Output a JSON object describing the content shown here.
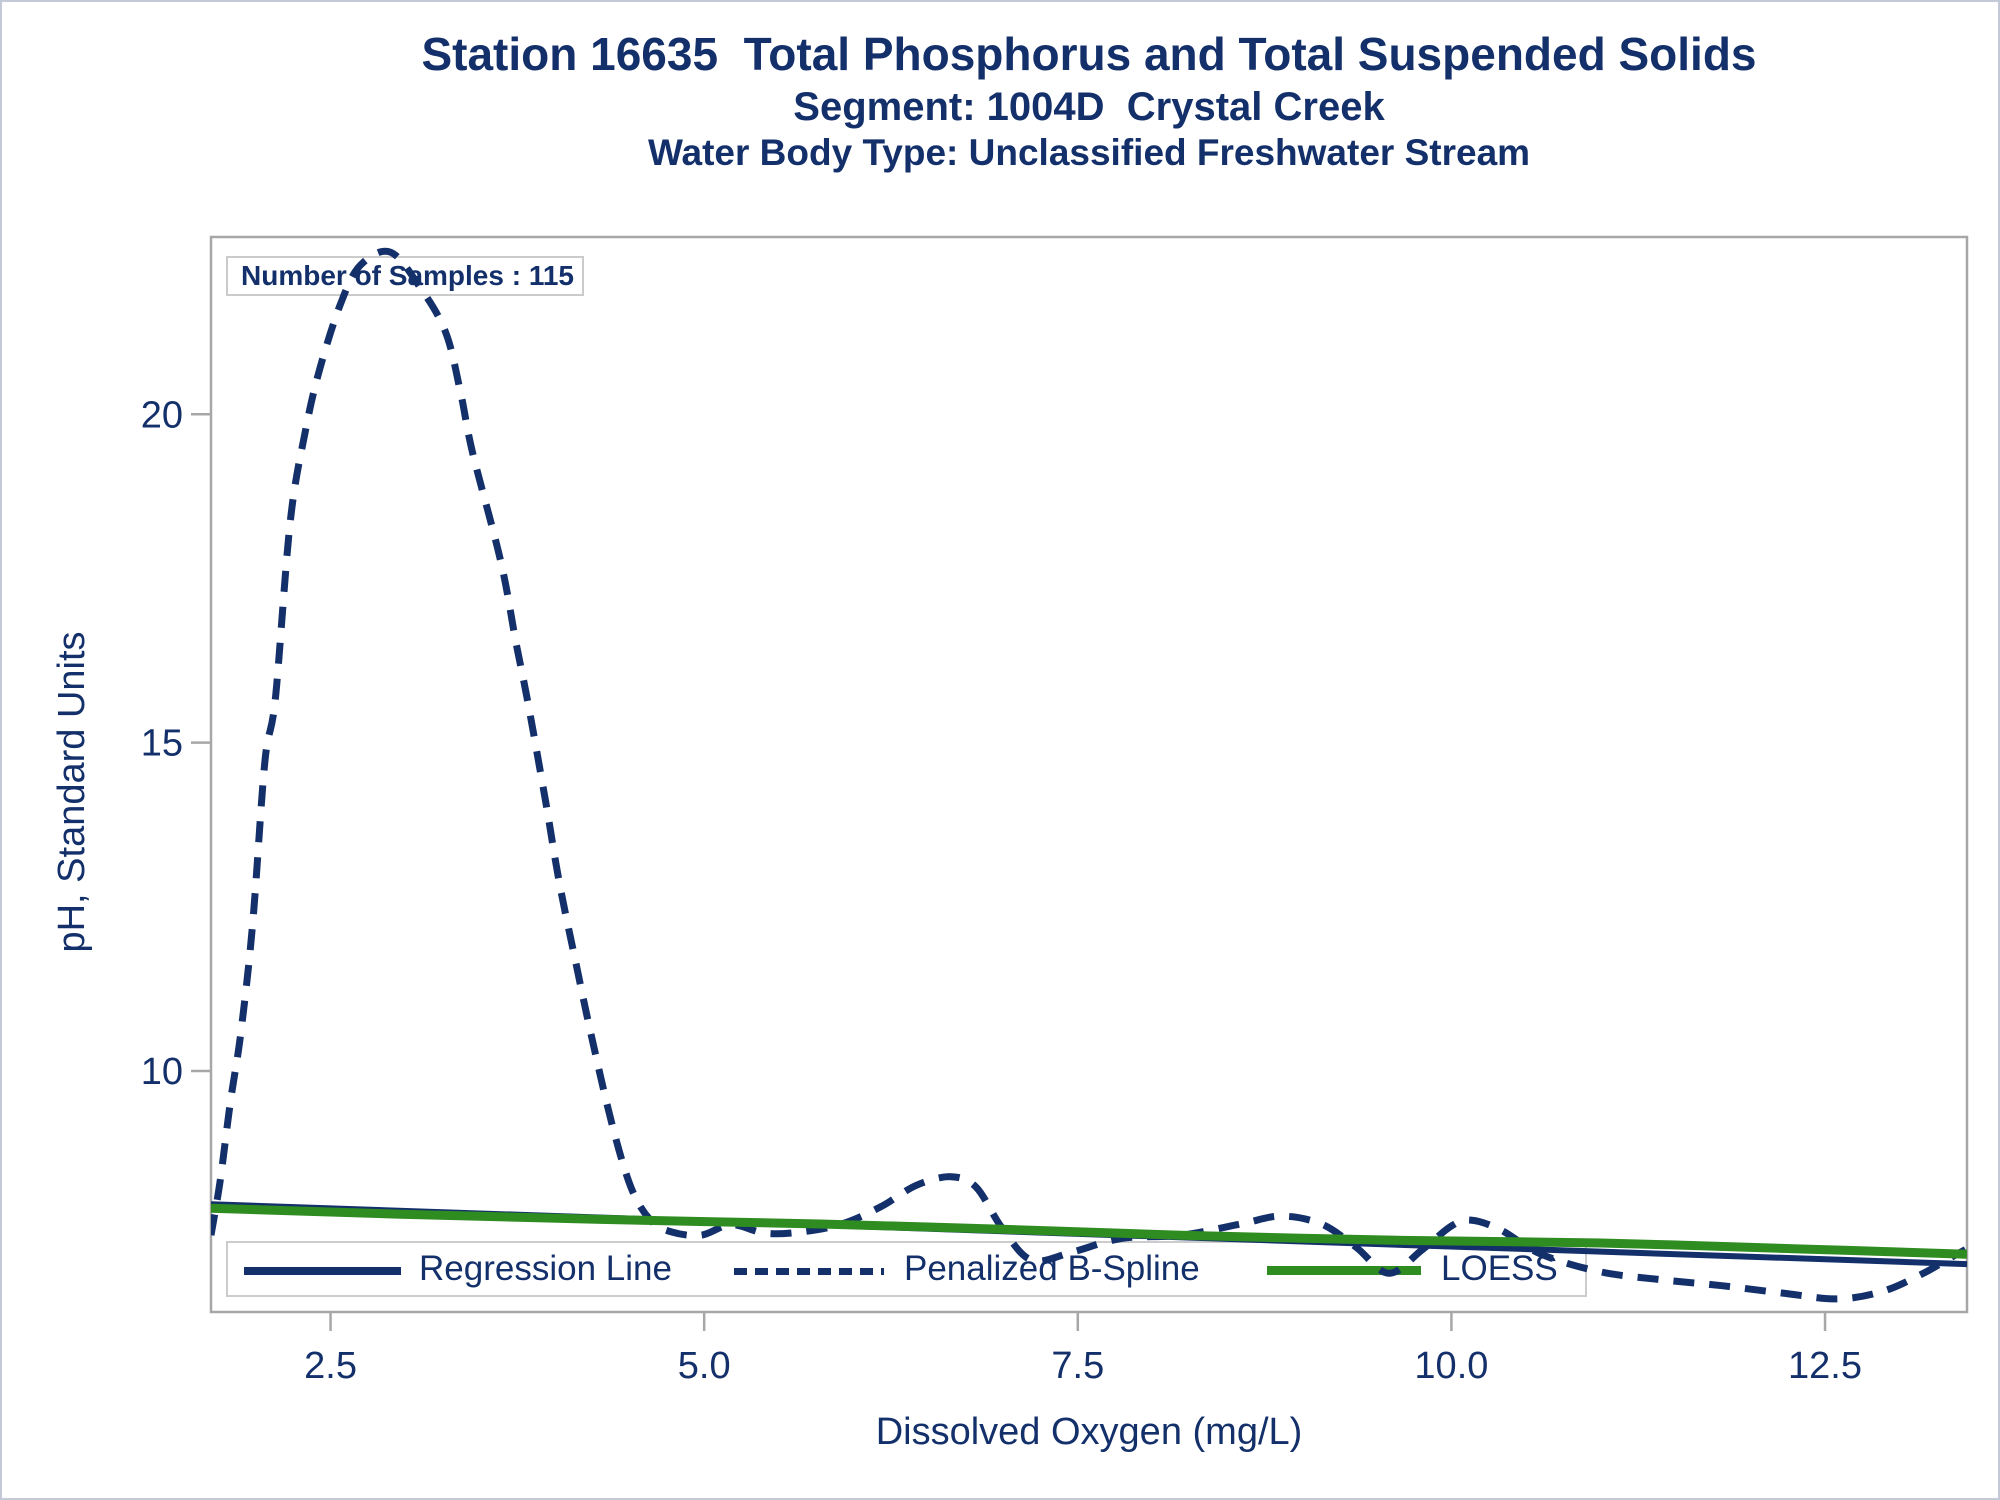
{
  "figure": {
    "titles": {
      "line1": "Station 16635  Total Phosphorus and Total Suspended Solids",
      "line2": "Segment: 1004D  Crystal Creek",
      "line3": "Water Body Type: Unclassified Freshwater Stream"
    },
    "inset_label": "Number of Samples : 115",
    "x_axis": {
      "label": "Dissolved Oxygen (mg/L)"
    },
    "y_axis": {
      "label": "pH, Standard Units"
    },
    "legend": [
      {
        "label": "Regression Line",
        "style": "solid",
        "color": "#14306b"
      },
      {
        "label": "Penalized B-Spline",
        "style": "dashed",
        "color": "#14306b"
      },
      {
        "label": "LOESS",
        "style": "solid",
        "color": "#2f8c20"
      }
    ]
  },
  "colors": {
    "navy": "#14306b",
    "green": "#2f8c20",
    "axis_gray": "#a7a7a7",
    "box_border": "#cbcbcb",
    "figure_border": "#c3c9d6"
  },
  "chart_data": {
    "type": "line",
    "title": "Station 16635  Total Phosphorus and Total Suspended Solids",
    "subtitle": "Segment: 1004D  Crystal Creek",
    "subtitle2": "Water Body Type: Unclassified Freshwater Stream",
    "xlabel": "Dissolved Oxygen (mg/L)",
    "ylabel": "pH, Standard Units",
    "annotation": "Number of Samples : 115",
    "grid": false,
    "legend_position": "bottom-inside",
    "xlim": [
      1.7,
      13.45
    ],
    "ylim": [
      6.33,
      22.7
    ],
    "x_ticks": [
      2.5,
      5.0,
      7.5,
      10.0,
      12.5
    ],
    "x_tick_labels": [
      "2.5",
      "5.0",
      "7.5",
      "10.0",
      "12.5"
    ],
    "y_ticks": [
      10,
      15,
      20
    ],
    "y_tick_labels": [
      "10",
      "15",
      "20"
    ],
    "series": [
      {
        "name": "Regression Line",
        "style": "solid",
        "color": "#14306b",
        "width": 6,
        "smooth": false,
        "points": [
          [
            1.7,
            7.97
          ],
          [
            13.45,
            7.06
          ]
        ]
      },
      {
        "name": "Penalized B-Spline",
        "style": "dashed",
        "color": "#14306b",
        "width": 7,
        "smooth": true,
        "points": [
          [
            1.7,
            7.5
          ],
          [
            1.76,
            8.31
          ],
          [
            1.83,
            9.53
          ],
          [
            1.9,
            10.59
          ],
          [
            1.98,
            12.27
          ],
          [
            2.06,
            14.7
          ],
          [
            2.13,
            15.66
          ],
          [
            2.23,
            18.36
          ],
          [
            2.33,
            19.73
          ],
          [
            2.43,
            20.71
          ],
          [
            2.57,
            21.7
          ],
          [
            2.7,
            22.27
          ],
          [
            2.9,
            22.47
          ],
          [
            3.1,
            21.93
          ],
          [
            3.27,
            21.25
          ],
          [
            3.37,
            20.33
          ],
          [
            3.45,
            19.42
          ],
          [
            3.64,
            17.75
          ],
          [
            3.74,
            16.53
          ],
          [
            3.82,
            15.62
          ],
          [
            3.94,
            14.09
          ],
          [
            4.03,
            12.88
          ],
          [
            4.14,
            11.66
          ],
          [
            4.24,
            10.59
          ],
          [
            4.38,
            9.22
          ],
          [
            4.51,
            8.23
          ],
          [
            4.64,
            7.73
          ],
          [
            4.78,
            7.55
          ],
          [
            4.98,
            7.5
          ],
          [
            5.18,
            7.66
          ],
          [
            5.41,
            7.53
          ],
          [
            5.65,
            7.55
          ],
          [
            5.92,
            7.67
          ],
          [
            6.18,
            7.93
          ],
          [
            6.42,
            8.26
          ],
          [
            6.65,
            8.39
          ],
          [
            6.82,
            8.23
          ],
          [
            6.99,
            7.62
          ],
          [
            7.19,
            7.12
          ],
          [
            7.46,
            7.24
          ],
          [
            7.79,
            7.45
          ],
          [
            8.19,
            7.5
          ],
          [
            8.59,
            7.67
          ],
          [
            8.86,
            7.79
          ],
          [
            9.13,
            7.67
          ],
          [
            9.36,
            7.32
          ],
          [
            9.58,
            6.92
          ],
          [
            9.8,
            7.27
          ],
          [
            10.0,
            7.64
          ],
          [
            10.13,
            7.73
          ],
          [
            10.33,
            7.58
          ],
          [
            10.6,
            7.21
          ],
          [
            11.0,
            6.94
          ],
          [
            11.41,
            6.82
          ],
          [
            11.81,
            6.73
          ],
          [
            12.21,
            6.62
          ],
          [
            12.58,
            6.53
          ],
          [
            12.88,
            6.64
          ],
          [
            13.15,
            6.91
          ],
          [
            13.35,
            7.17
          ],
          [
            13.44,
            7.28
          ]
        ]
      },
      {
        "name": "LOESS",
        "style": "solid",
        "color": "#2f8c20",
        "width": 9,
        "smooth": true,
        "points": [
          [
            1.7,
            7.91
          ],
          [
            2.97,
            7.82
          ],
          [
            4.31,
            7.74
          ],
          [
            5.78,
            7.67
          ],
          [
            6.99,
            7.59
          ],
          [
            8.19,
            7.5
          ],
          [
            9.67,
            7.42
          ],
          [
            11.0,
            7.38
          ],
          [
            12.34,
            7.29
          ],
          [
            13.45,
            7.21
          ]
        ]
      }
    ]
  }
}
